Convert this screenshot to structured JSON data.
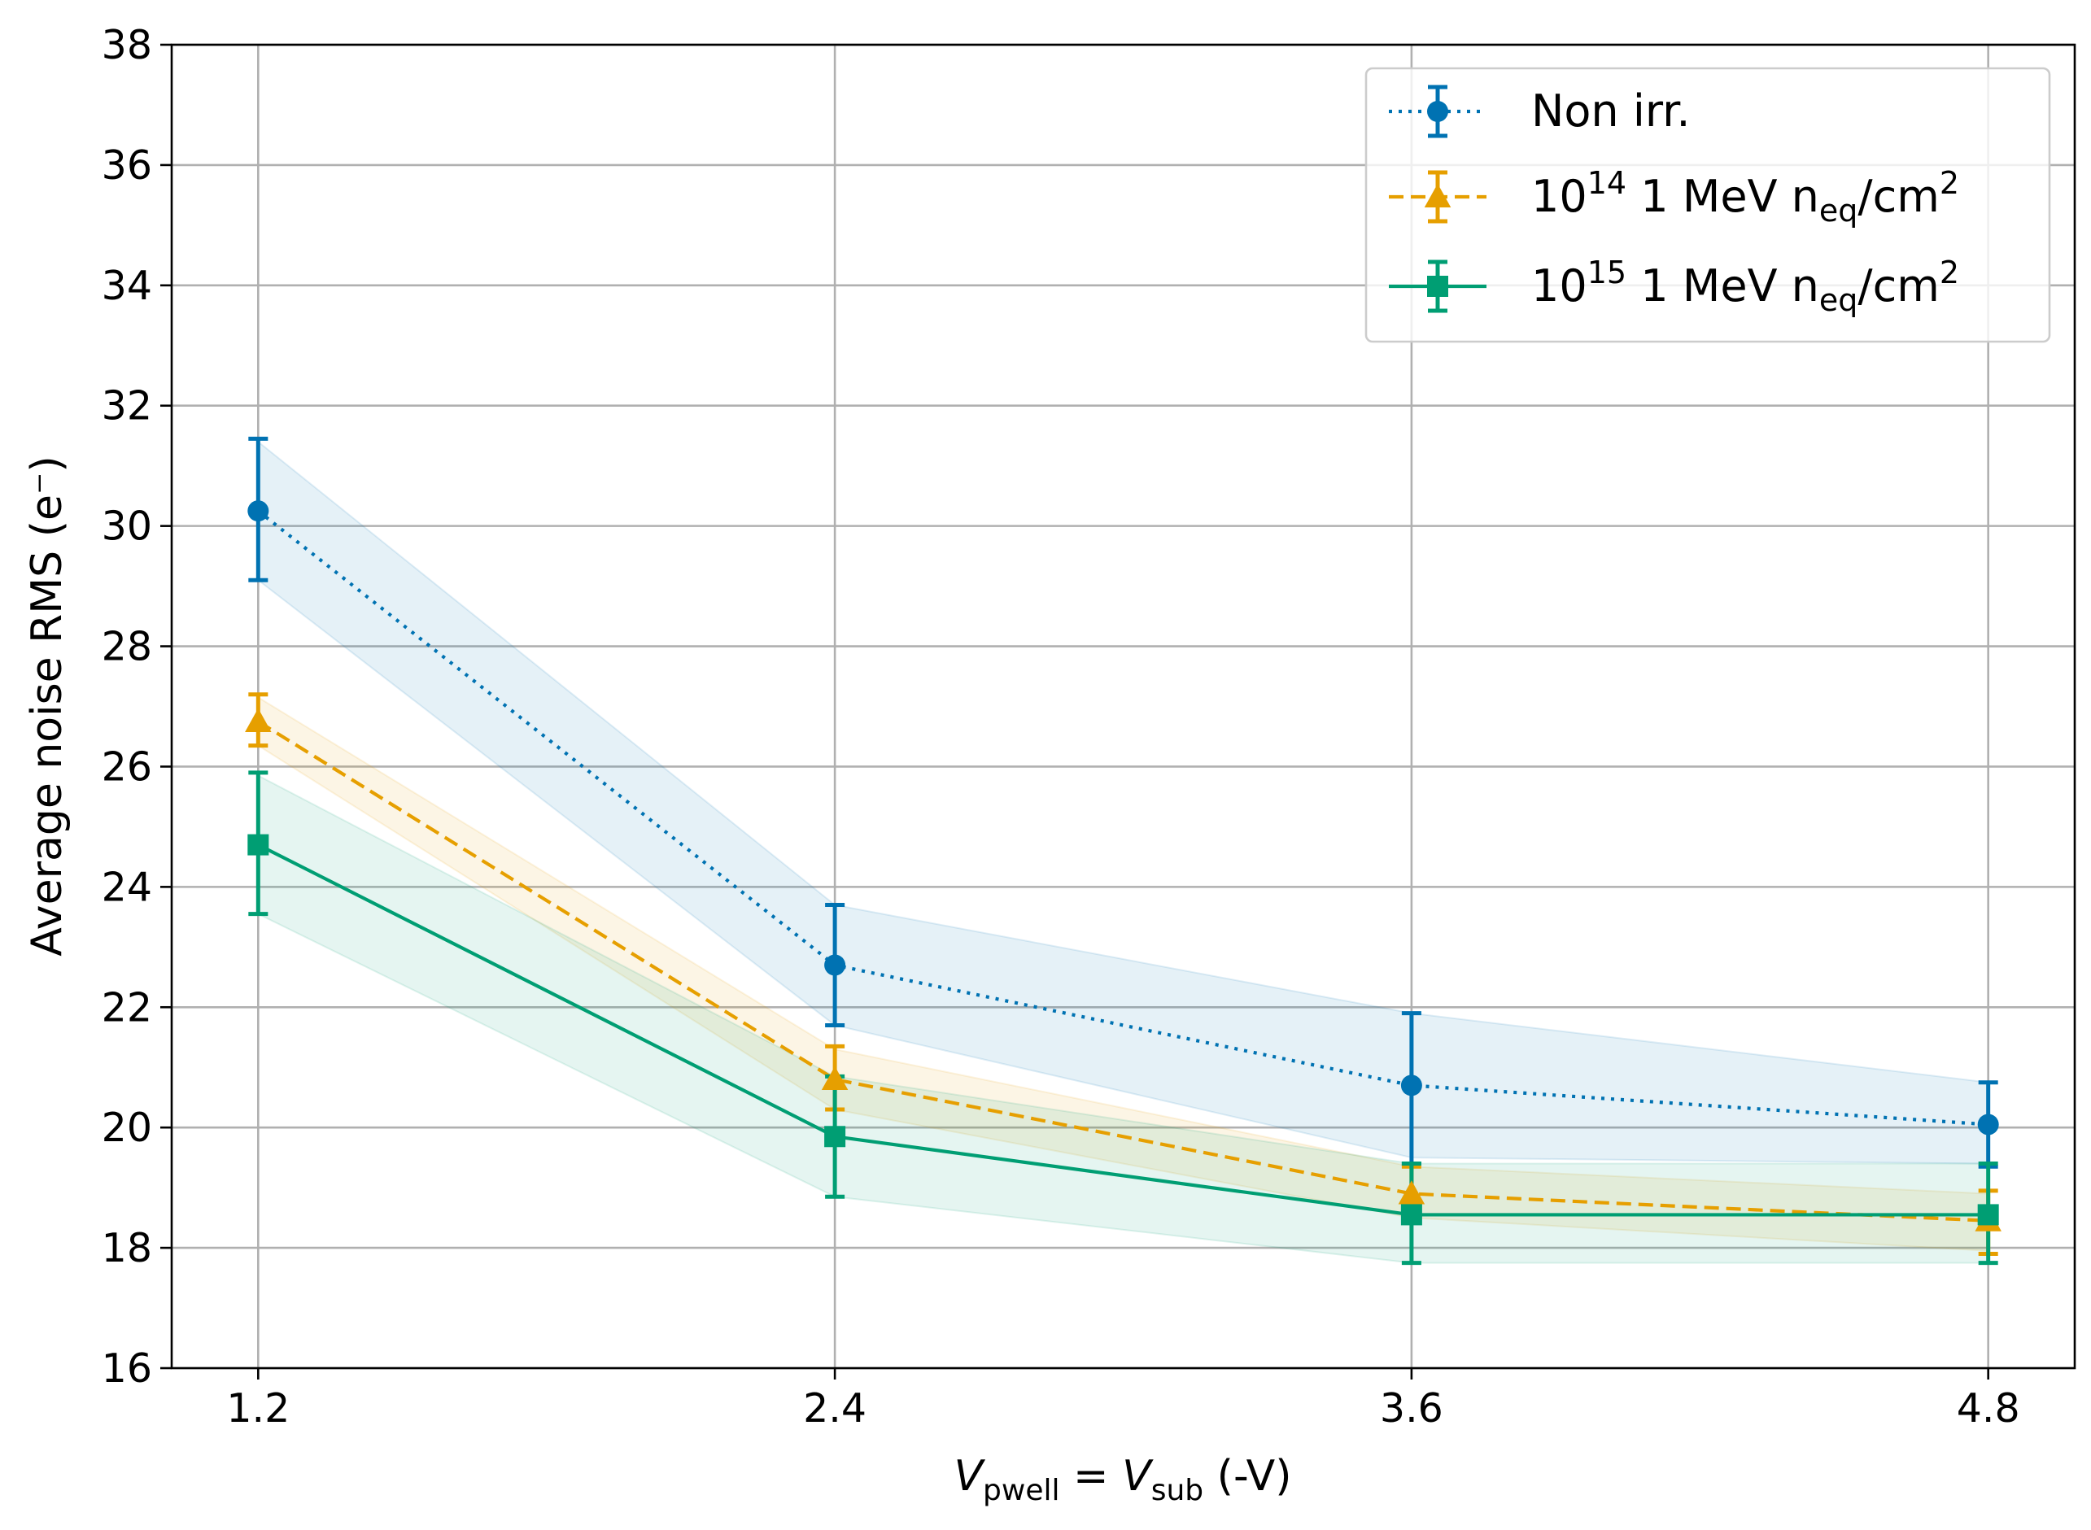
{
  "chart_data": {
    "type": "line",
    "title": "",
    "xlabel": {
      "v1": "V",
      "s1": "pwell",
      "eq": " = ",
      "v2": "V",
      "s2": "sub",
      "unit": " (-V)"
    },
    "ylabel": "Average noise RMS (e⁻)",
    "x": [
      1.2,
      2.4,
      3.6,
      4.8
    ],
    "xticks": [
      "1.2",
      "2.4",
      "3.6",
      "4.8"
    ],
    "xlim": [
      1.02,
      4.98
    ],
    "ylim": [
      16,
      38
    ],
    "yticks": [
      "16",
      "18",
      "20",
      "22",
      "24",
      "26",
      "28",
      "30",
      "32",
      "34",
      "36",
      "38"
    ],
    "grid": true,
    "legend_position": "top-right",
    "series": [
      {
        "name": "Non irr.",
        "legend": {
          "base": "Non irr."
        },
        "color": "#0072b2",
        "linestyle": "dotted",
        "marker": "circle",
        "values": [
          30.25,
          22.7,
          20.7,
          20.05
        ],
        "err_low": [
          29.1,
          21.7,
          19.4,
          19.35
        ],
        "err_high": [
          31.45,
          23.7,
          21.9,
          20.75
        ],
        "band_low": [
          29.1,
          21.7,
          19.5,
          19.4
        ],
        "band_high": [
          31.4,
          23.7,
          21.9,
          20.75
        ]
      },
      {
        "name": "10^14 1 MeV neq/cm^2",
        "legend": {
          "base": "10",
          "exp": "14",
          "mid": " 1 MeV n",
          "sub": "eq",
          "unit": "/cm",
          "exp2": "2"
        },
        "color": "#e69f00",
        "linestyle": "dashed",
        "marker": "triangle",
        "values": [
          26.75,
          20.8,
          18.9,
          18.45
        ],
        "err_low": [
          26.35,
          20.3,
          18.45,
          17.9
        ],
        "err_high": [
          27.2,
          21.35,
          19.35,
          18.95
        ],
        "band_low": [
          26.35,
          20.3,
          18.5,
          17.95
        ],
        "band_high": [
          27.15,
          21.3,
          19.35,
          18.9
        ]
      },
      {
        "name": "10^15 1 MeV neq/cm^2",
        "legend": {
          "base": "10",
          "exp": "15",
          "mid": " 1 MeV n",
          "sub": "eq",
          "unit": "/cm",
          "exp2": "2"
        },
        "color": "#009e73",
        "linestyle": "solid",
        "marker": "square",
        "values": [
          24.7,
          19.85,
          18.55,
          18.55
        ],
        "err_low": [
          23.55,
          18.85,
          17.75,
          17.75
        ],
        "err_high": [
          25.9,
          20.85,
          19.4,
          19.4
        ],
        "band_low": [
          23.55,
          18.85,
          17.75,
          17.75
        ],
        "band_high": [
          25.85,
          20.85,
          19.4,
          19.4
        ]
      }
    ]
  }
}
